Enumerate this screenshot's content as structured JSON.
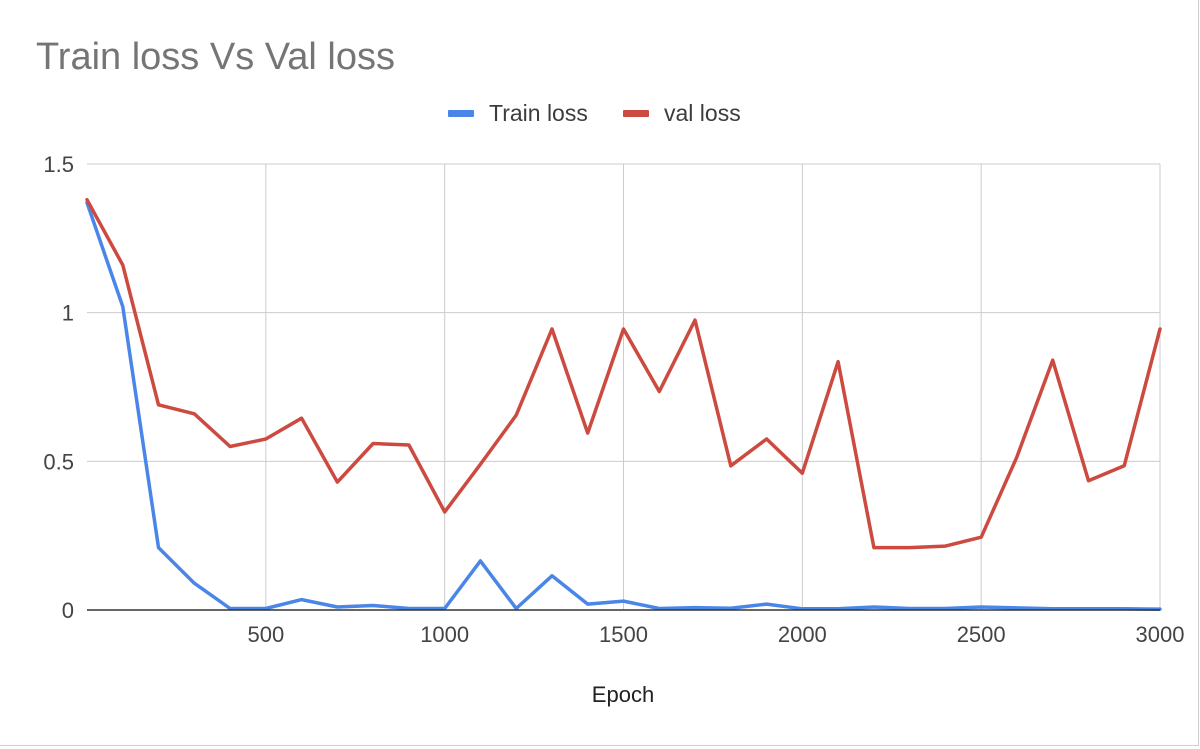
{
  "chart_data": {
    "type": "line",
    "title": "Train loss Vs Val loss",
    "xlabel": "Epoch",
    "ylabel": "",
    "xlim": [
      0,
      3000
    ],
    "ylim": [
      0,
      1.5
    ],
    "x_ticks": [
      500,
      1000,
      1500,
      2000,
      2500,
      3000
    ],
    "y_ticks": [
      0,
      0.5,
      1,
      1.5
    ],
    "x_tick_labels": [
      "500",
      "1000",
      "1500",
      "2000",
      "2500",
      "3000"
    ],
    "y_tick_labels": [
      "0",
      "0.5",
      "1",
      "1.5"
    ],
    "grid": true,
    "legend_position": "top",
    "x": [
      0,
      100,
      200,
      300,
      400,
      500,
      600,
      700,
      800,
      900,
      1000,
      1100,
      1200,
      1300,
      1400,
      1500,
      1600,
      1700,
      1800,
      1900,
      2000,
      2100,
      2200,
      2300,
      2400,
      2500,
      2600,
      2700,
      2800,
      2900,
      3000
    ],
    "series": [
      {
        "name": "Train loss",
        "color": "#4a86e8",
        "values": [
          1.37,
          1.02,
          0.21,
          0.09,
          0.005,
          0.005,
          0.035,
          0.01,
          0.015,
          0.005,
          0.005,
          0.165,
          0.005,
          0.115,
          0.02,
          0.03,
          0.005,
          0.008,
          0.006,
          0.02,
          0.004,
          0.004,
          0.01,
          0.005,
          0.005,
          0.01,
          0.007,
          0.004,
          0.004,
          0.004,
          0.003
        ]
      },
      {
        "name": "val loss",
        "color": "#cc4a3f",
        "values": [
          1.38,
          1.16,
          0.69,
          0.66,
          0.55,
          0.575,
          0.645,
          0.43,
          0.56,
          0.555,
          0.33,
          0.49,
          0.655,
          0.945,
          0.595,
          0.945,
          0.735,
          0.975,
          0.485,
          0.575,
          0.46,
          0.835,
          0.21,
          0.21,
          0.215,
          0.245,
          0.515,
          0.84,
          0.435,
          0.485,
          0.945
        ]
      }
    ]
  }
}
